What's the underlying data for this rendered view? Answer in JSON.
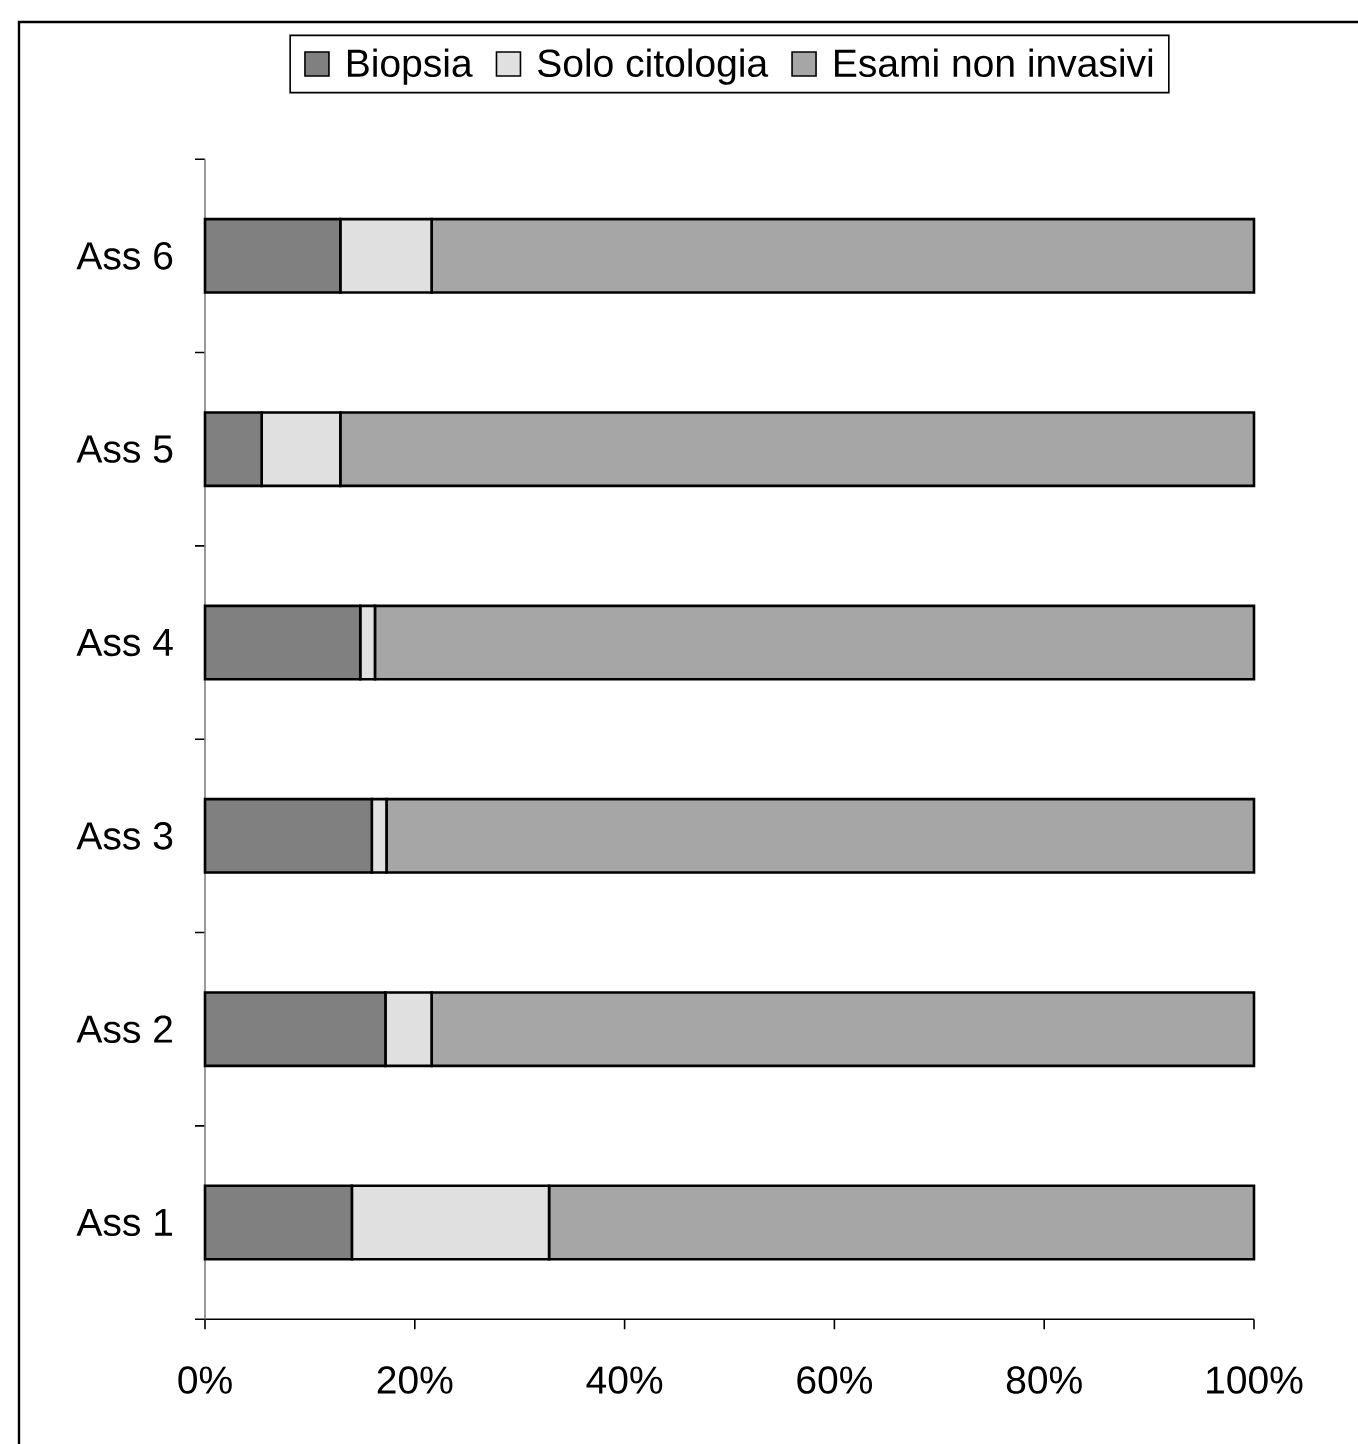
{
  "chart_data": {
    "type": "bar",
    "orientation": "horizontal",
    "stacked": true,
    "categories": [
      "Ass 6",
      "Ass 5",
      "Ass 4",
      "Ass 3",
      "Ass 2",
      "Ass 1"
    ],
    "series": [
      {
        "name": "Biopsia",
        "color": "#808080",
        "values": [
          12.9,
          5.4,
          14.8,
          15.9,
          17.2,
          14.0
        ]
      },
      {
        "name": "Solo citologia",
        "color": "#e0e0e0",
        "values": [
          8.7,
          7.5,
          1.4,
          1.4,
          4.4,
          18.8
        ]
      },
      {
        "name": "Esami non invasivi",
        "color": "#a6a6a6",
        "values": [
          78.4,
          87.1,
          83.8,
          82.7,
          78.4,
          67.2
        ]
      }
    ],
    "xlim": [
      0,
      100
    ],
    "xticks": [
      {
        "value": 0,
        "label": "0%"
      },
      {
        "value": 20,
        "label": "20%"
      },
      {
        "value": 40,
        "label": "40%"
      },
      {
        "value": 60,
        "label": "60%"
      },
      {
        "value": 80,
        "label": "80%"
      },
      {
        "value": 100,
        "label": "100%"
      }
    ],
    "legend": "top"
  }
}
